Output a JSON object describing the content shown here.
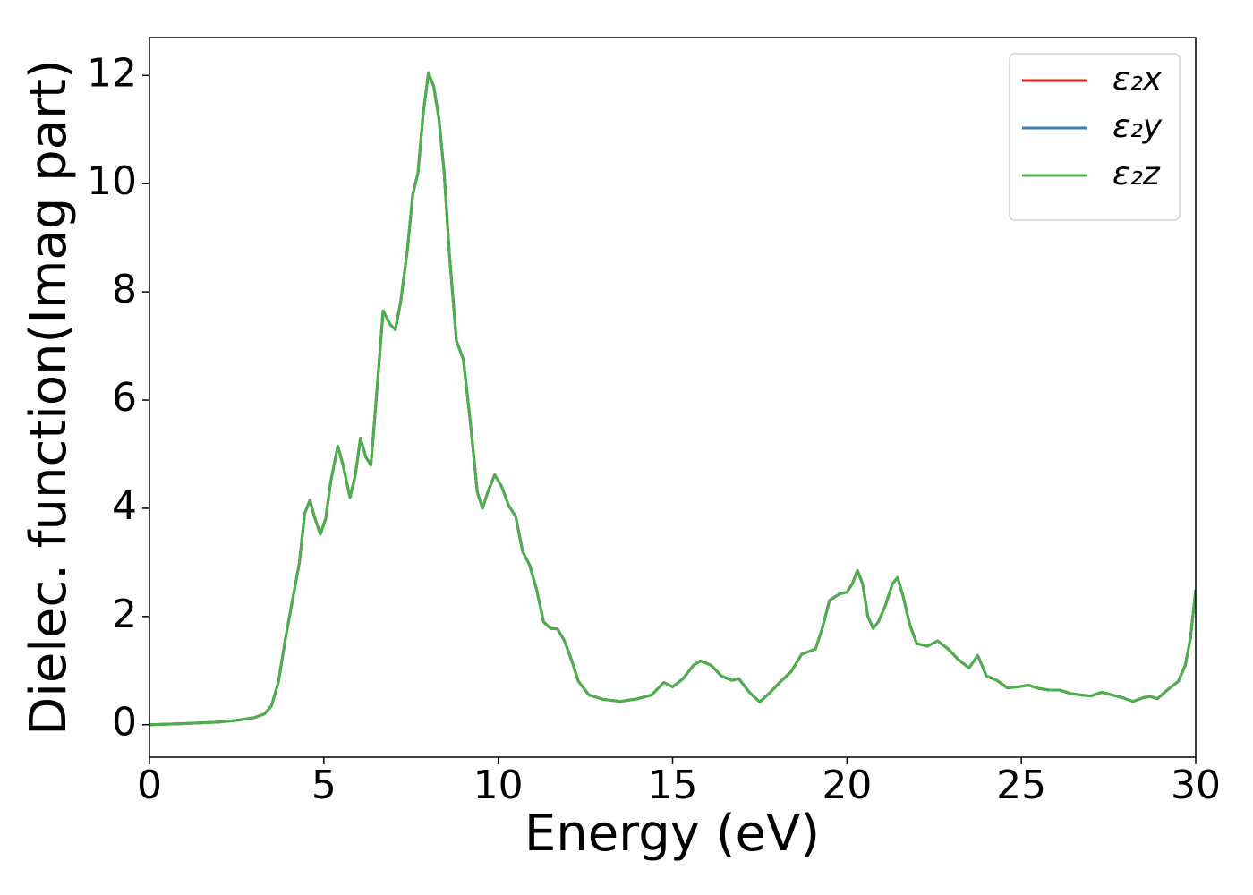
{
  "chart_data": {
    "type": "line",
    "xlabel": "Energy (eV)",
    "ylabel": "Dielec. function(Imag part)",
    "x": [
      0,
      1,
      2,
      2.5,
      3,
      3.3,
      3.5,
      3.7,
      3.9,
      4.1,
      4.3,
      4.45,
      4.6,
      4.75,
      4.9,
      5.05,
      5.2,
      5.4,
      5.55,
      5.75,
      5.9,
      6.05,
      6.2,
      6.35,
      6.5,
      6.7,
      6.9,
      7.05,
      7.2,
      7.4,
      7.55,
      7.7,
      7.85,
      8.0,
      8.15,
      8.3,
      8.45,
      8.6,
      8.8,
      9.0,
      9.2,
      9.4,
      9.55,
      9.7,
      9.9,
      10.1,
      10.3,
      10.5,
      10.7,
      10.9,
      11.1,
      11.3,
      11.5,
      11.7,
      11.9,
      12.1,
      12.3,
      12.6,
      13.0,
      13.5,
      14.0,
      14.4,
      14.75,
      15.0,
      15.3,
      15.6,
      15.8,
      16.1,
      16.4,
      16.7,
      16.9,
      17.2,
      17.5,
      17.8,
      18.1,
      18.4,
      18.7,
      18.9,
      19.1,
      19.3,
      19.5,
      19.8,
      20.0,
      20.15,
      20.3,
      20.45,
      20.6,
      20.75,
      20.9,
      21.1,
      21.3,
      21.45,
      21.6,
      21.8,
      22.0,
      22.3,
      22.6,
      22.9,
      23.2,
      23.5,
      23.75,
      24.0,
      24.3,
      24.6,
      24.9,
      25.2,
      25.5,
      25.8,
      26.1,
      26.4,
      26.7,
      27.0,
      27.3,
      27.6,
      27.9,
      28.2,
      28.5,
      28.7,
      28.9,
      29.2,
      29.5,
      29.7,
      29.85,
      30.0
    ],
    "series": [
      {
        "name": "ε₂x",
        "color": "#e41a1c",
        "values": [
          0,
          0.02,
          0.05,
          0.08,
          0.13,
          0.2,
          0.35,
          0.8,
          1.6,
          2.3,
          3.0,
          3.9,
          4.15,
          3.8,
          3.52,
          3.8,
          4.5,
          5.15,
          4.8,
          4.2,
          4.6,
          5.3,
          4.95,
          4.8,
          6.0,
          7.65,
          7.4,
          7.3,
          7.8,
          8.8,
          9.8,
          10.2,
          11.3,
          12.05,
          11.8,
          11.2,
          10.2,
          8.7,
          7.1,
          6.75,
          5.6,
          4.3,
          4.0,
          4.3,
          4.62,
          4.4,
          4.05,
          3.85,
          3.2,
          2.95,
          2.5,
          1.9,
          1.78,
          1.77,
          1.55,
          1.2,
          0.8,
          0.55,
          0.47,
          0.43,
          0.48,
          0.55,
          0.78,
          0.7,
          0.85,
          1.1,
          1.18,
          1.1,
          0.9,
          0.82,
          0.85,
          0.6,
          0.42,
          0.6,
          0.8,
          0.98,
          1.3,
          1.35,
          1.4,
          1.8,
          2.3,
          2.42,
          2.45,
          2.6,
          2.85,
          2.6,
          2.0,
          1.78,
          1.9,
          2.2,
          2.6,
          2.72,
          2.4,
          1.85,
          1.5,
          1.45,
          1.55,
          1.4,
          1.2,
          1.05,
          1.28,
          0.9,
          0.82,
          0.68,
          0.7,
          0.73,
          0.67,
          0.64,
          0.64,
          0.58,
          0.55,
          0.53,
          0.6,
          0.55,
          0.5,
          0.43,
          0.5,
          0.52,
          0.48,
          0.65,
          0.8,
          1.1,
          1.6,
          2.5
        ]
      },
      {
        "name": "ε₂y",
        "color": "#377eb8",
        "values": [
          0,
          0.02,
          0.05,
          0.08,
          0.13,
          0.2,
          0.35,
          0.8,
          1.6,
          2.3,
          3.0,
          3.9,
          4.15,
          3.8,
          3.52,
          3.8,
          4.5,
          5.15,
          4.8,
          4.2,
          4.6,
          5.3,
          4.95,
          4.8,
          6.0,
          7.65,
          7.4,
          7.3,
          7.8,
          8.8,
          9.8,
          10.2,
          11.3,
          12.05,
          11.8,
          11.2,
          10.2,
          8.7,
          7.1,
          6.75,
          5.6,
          4.3,
          4.0,
          4.3,
          4.62,
          4.4,
          4.05,
          3.85,
          3.2,
          2.95,
          2.5,
          1.9,
          1.78,
          1.77,
          1.55,
          1.2,
          0.8,
          0.55,
          0.47,
          0.43,
          0.48,
          0.55,
          0.78,
          0.7,
          0.85,
          1.1,
          1.18,
          1.1,
          0.9,
          0.82,
          0.85,
          0.6,
          0.42,
          0.6,
          0.8,
          0.98,
          1.3,
          1.35,
          1.4,
          1.8,
          2.3,
          2.42,
          2.45,
          2.6,
          2.85,
          2.6,
          2.0,
          1.78,
          1.9,
          2.2,
          2.6,
          2.72,
          2.4,
          1.85,
          1.5,
          1.45,
          1.55,
          1.4,
          1.2,
          1.05,
          1.28,
          0.9,
          0.82,
          0.68,
          0.7,
          0.73,
          0.67,
          0.64,
          0.64,
          0.58,
          0.55,
          0.53,
          0.6,
          0.55,
          0.5,
          0.43,
          0.5,
          0.52,
          0.48,
          0.65,
          0.8,
          1.1,
          1.6,
          2.5
        ]
      },
      {
        "name": "ε₂z",
        "color": "#4daf4a",
        "values": [
          0,
          0.02,
          0.05,
          0.08,
          0.13,
          0.2,
          0.35,
          0.8,
          1.6,
          2.3,
          3.0,
          3.9,
          4.15,
          3.8,
          3.52,
          3.8,
          4.5,
          5.15,
          4.8,
          4.2,
          4.6,
          5.3,
          4.95,
          4.8,
          6.0,
          7.65,
          7.4,
          7.3,
          7.8,
          8.8,
          9.8,
          10.2,
          11.3,
          12.05,
          11.8,
          11.2,
          10.2,
          8.7,
          7.1,
          6.75,
          5.6,
          4.3,
          4.0,
          4.3,
          4.62,
          4.4,
          4.05,
          3.85,
          3.2,
          2.95,
          2.5,
          1.9,
          1.78,
          1.77,
          1.55,
          1.2,
          0.8,
          0.55,
          0.47,
          0.43,
          0.48,
          0.55,
          0.78,
          0.7,
          0.85,
          1.1,
          1.18,
          1.1,
          0.9,
          0.82,
          0.85,
          0.6,
          0.42,
          0.6,
          0.8,
          0.98,
          1.3,
          1.35,
          1.4,
          1.8,
          2.3,
          2.42,
          2.45,
          2.6,
          2.85,
          2.6,
          2.0,
          1.78,
          1.9,
          2.2,
          2.6,
          2.72,
          2.4,
          1.85,
          1.5,
          1.45,
          1.55,
          1.4,
          1.2,
          1.05,
          1.28,
          0.9,
          0.82,
          0.68,
          0.7,
          0.73,
          0.67,
          0.64,
          0.64,
          0.58,
          0.55,
          0.53,
          0.6,
          0.55,
          0.5,
          0.43,
          0.5,
          0.52,
          0.48,
          0.65,
          0.8,
          1.1,
          1.6,
          2.5
        ]
      }
    ],
    "xlim": [
      0,
      30
    ],
    "xticks": [
      0,
      5,
      10,
      15,
      20,
      25,
      30
    ],
    "ylim": [
      -0.6,
      12.7
    ],
    "yticks": [
      0,
      2,
      4,
      6,
      8,
      10,
      12
    ],
    "legend": "upper right"
  }
}
